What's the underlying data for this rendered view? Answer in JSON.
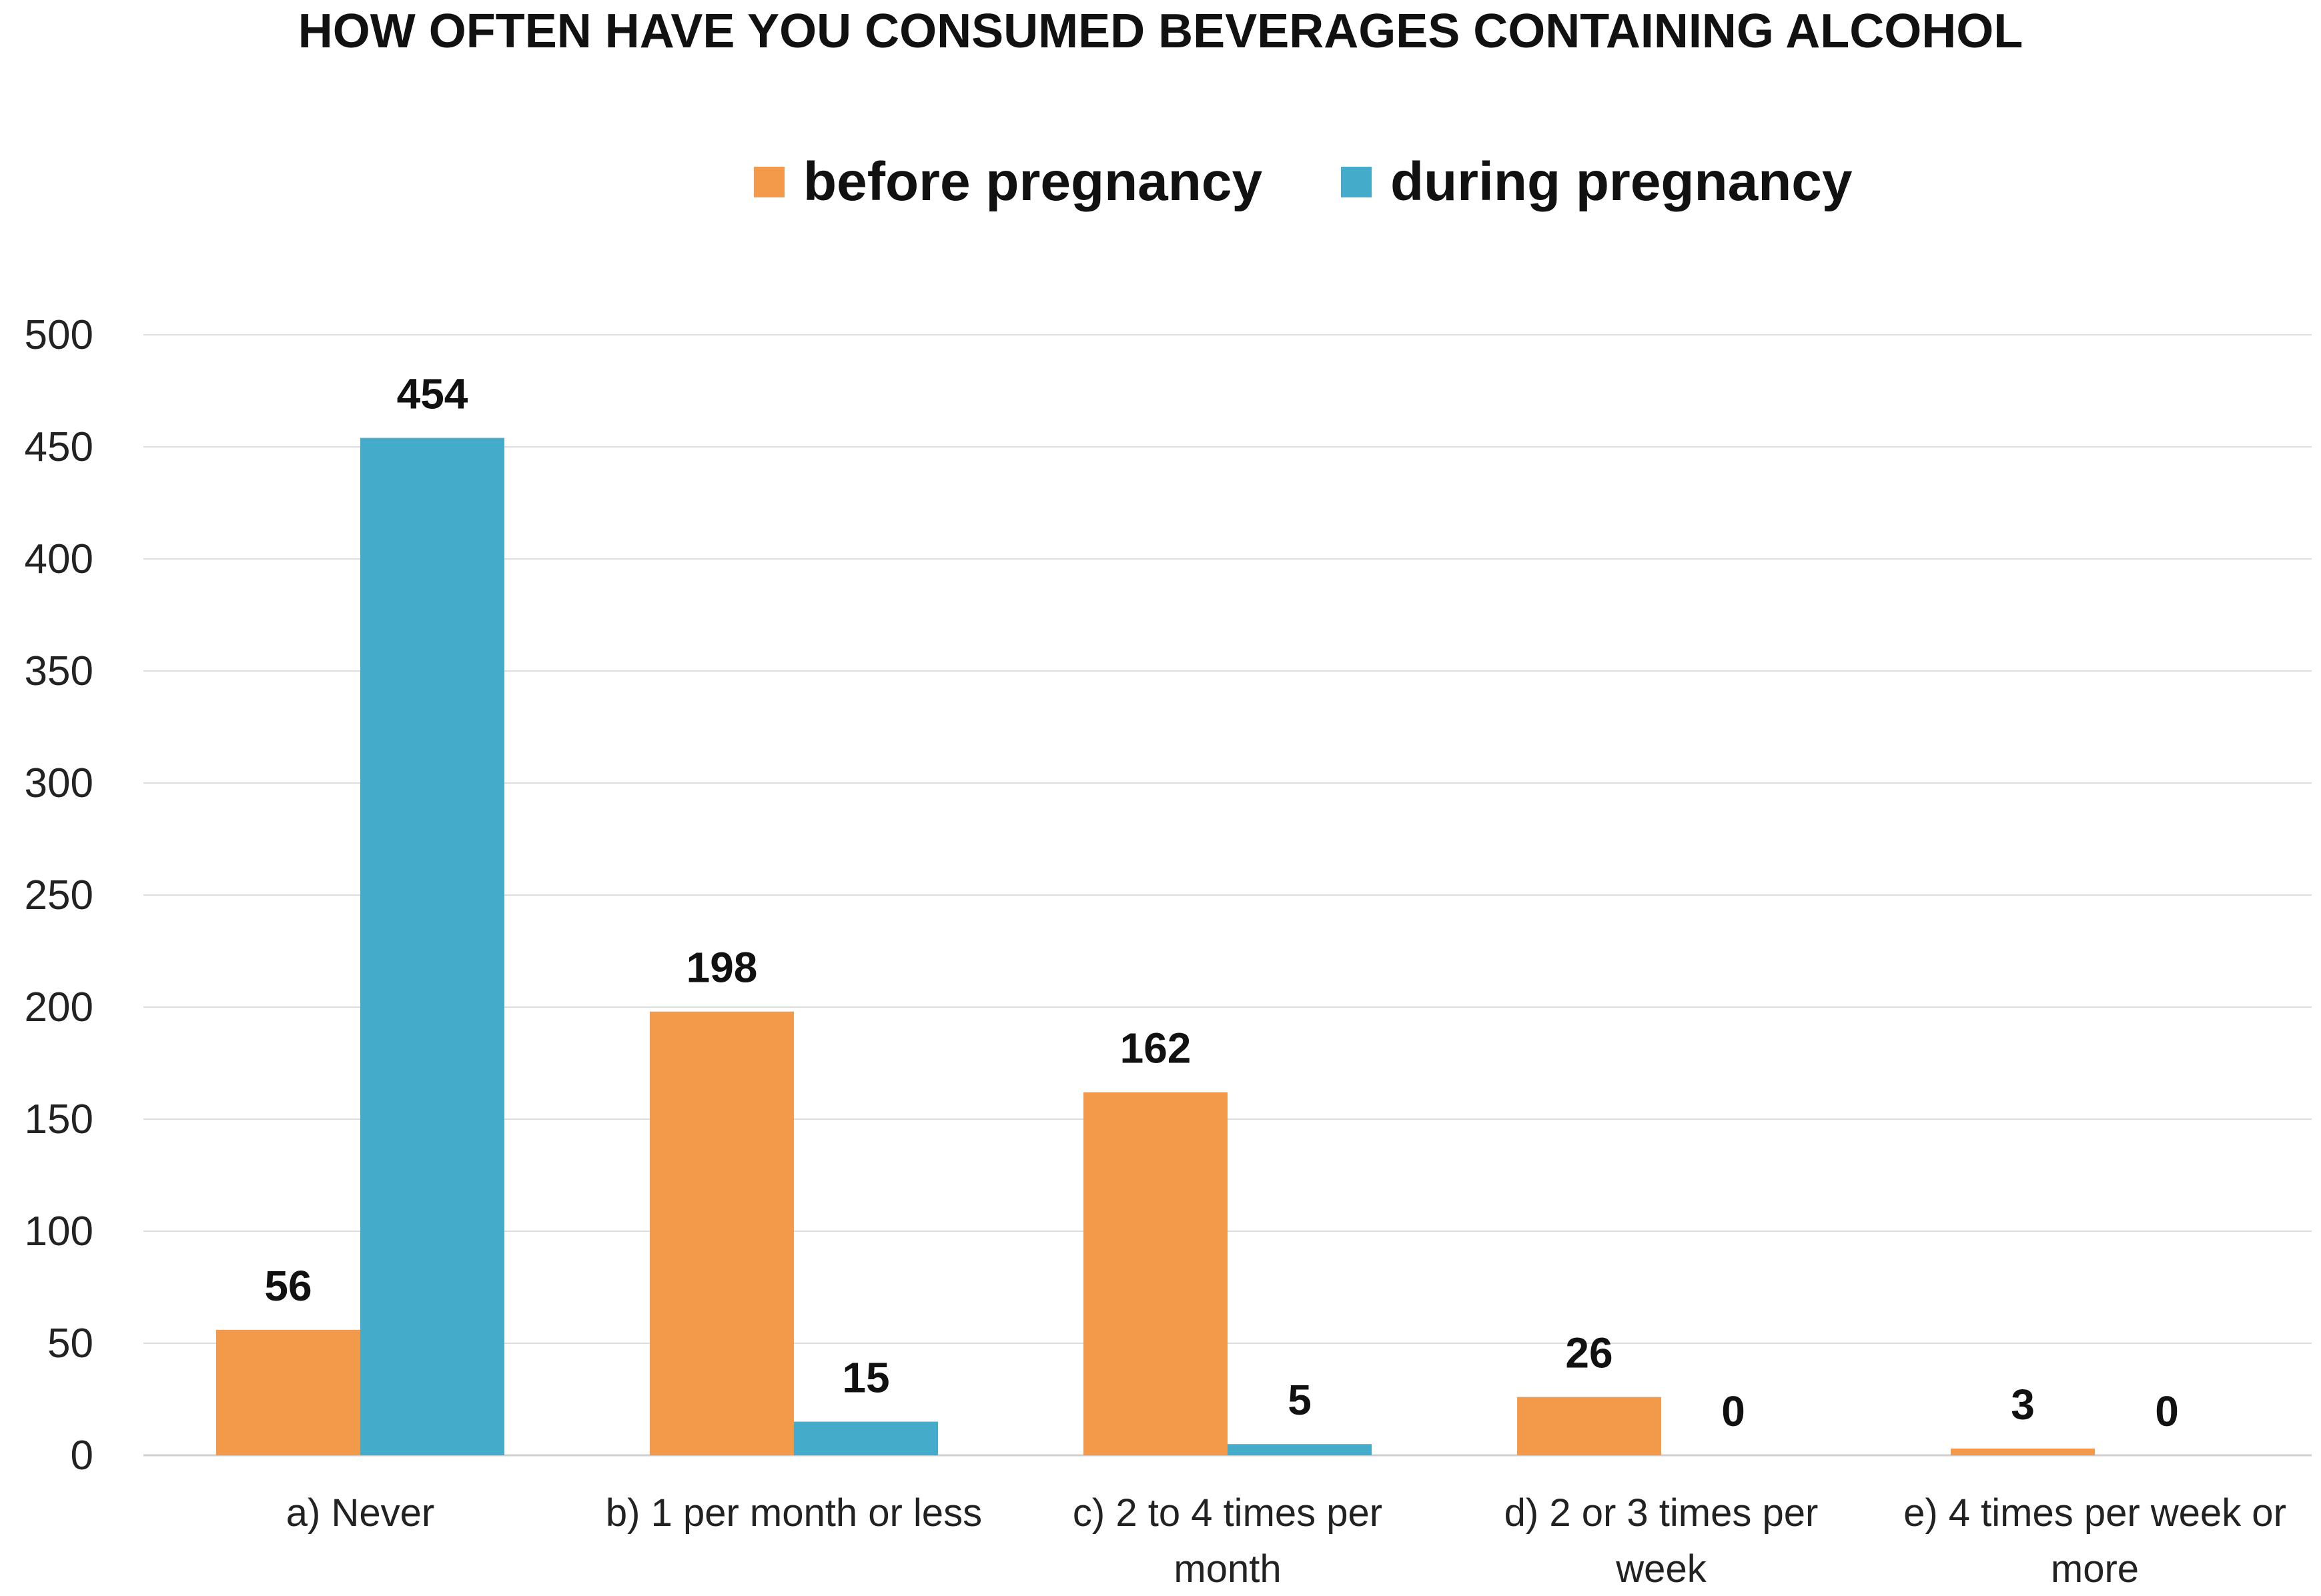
{
  "chart_data": {
    "type": "bar",
    "title": "HOW OFTEN HAVE YOU CONSUMED BEVERAGES CONTAINING ALCOHOL",
    "categories": [
      [
        "a) Never"
      ],
      [
        "b) 1 per month or less"
      ],
      [
        "c) 2 to 4 times per",
        "month"
      ],
      [
        "d) 2 or 3 times per",
        "week"
      ],
      [
        "e) 4 times per week or",
        "more"
      ]
    ],
    "series": [
      {
        "name": "before pregnancy",
        "color": "#F2994A",
        "values": [
          56,
          198,
          162,
          26,
          3
        ]
      },
      {
        "name": "during pregnancy",
        "color": "#45ABCA",
        "values": [
          454,
          15,
          5,
          0,
          0
        ]
      }
    ],
    "yticks": [
      0,
      50,
      100,
      150,
      200,
      250,
      300,
      350,
      400,
      450,
      500
    ],
    "ylim": [
      0,
      500
    ],
    "grid": true,
    "legend_position": "top-center",
    "xlabel": "",
    "ylabel": ""
  }
}
